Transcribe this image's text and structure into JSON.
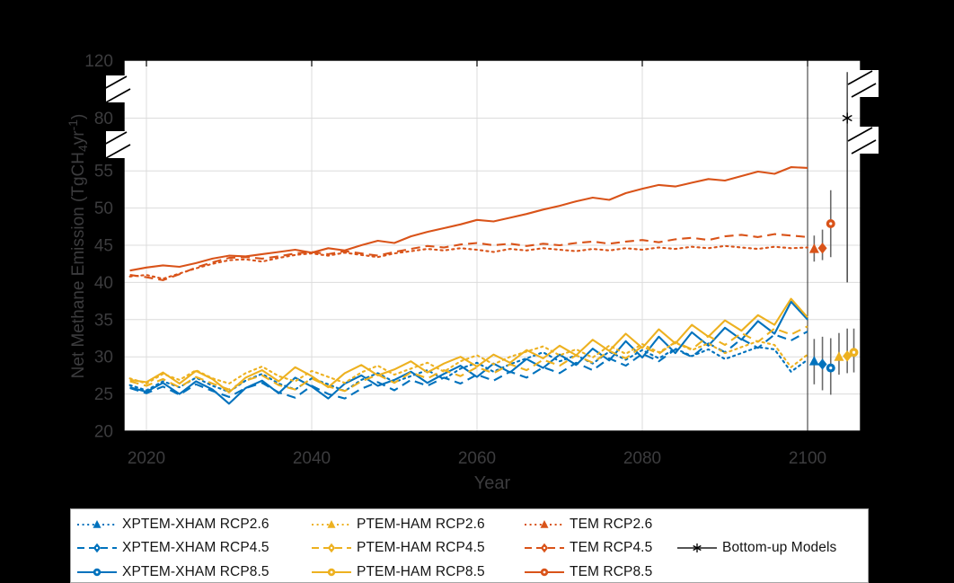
{
  "figure": {
    "background": "#000000",
    "plot_background": "#ffffff"
  },
  "colors": {
    "xptem_xham_blue": "#0072BD",
    "ptem_ham_yellow": "#EDB120",
    "tem_orange": "#D95319",
    "bottom_up_gray": "#333333",
    "error_bar_gray": "#6a6a6a",
    "grid": "#dcdcdc",
    "axis_line": "#000000",
    "axis_text": "#3c3c3e",
    "legend_text": "#141414"
  },
  "axis": {
    "xlabel": "Year",
    "ylabel_parts": [
      {
        "t": "Net Methane Emission (TgCH",
        "dy": 0,
        "size": 19
      },
      {
        "t": "4",
        "dy": 4,
        "size": 14
      },
      {
        "t": "yr",
        "dy": -4,
        "size": 19
      },
      {
        "t": "-1",
        "dy": -7,
        "size": 14
      },
      {
        "t": ")",
        "dy": 7,
        "size": 19
      }
    ],
    "x_tick_labels": [
      "2020",
      "2040",
      "2060",
      "2080",
      "2100"
    ],
    "y_tick_labels_lower": [
      "20",
      "25",
      "30",
      "35",
      "40",
      "45",
      "50",
      "55"
    ],
    "y_tick_labels_upper": [
      "80",
      "120"
    ]
  },
  "chart_data": {
    "type": "line",
    "title": "",
    "xlabel": "Year",
    "ylabel": "Net Methane Emission (TgCH4 yr-1)",
    "x_start": 2018,
    "x_step": 2,
    "x_axis_range_years": [
      2017.3,
      2106.4
    ],
    "y_axis_segments": [
      [
        20,
        57.5
      ],
      [
        57.5,
        80
      ],
      [
        80,
        120
      ]
    ],
    "y_axis_breaks_between": [
      [
        57.5,
        80
      ],
      [
        80,
        120
      ]
    ],
    "grid": true,
    "x_gridline_years": [
      2020,
      2040,
      2060,
      2080,
      2100
    ],
    "y_gridline_values": [
      25,
      30,
      35,
      40,
      45,
      50,
      55,
      80
    ],
    "x_tick_years": [
      2020,
      2040,
      2060,
      2080,
      2100
    ],
    "y_tick_values": [
      20,
      25,
      30,
      35,
      40,
      45,
      50,
      55,
      80,
      120
    ],
    "end_of_record_vline_year": 2100,
    "series": [
      {
        "name": "XPTEM-XHAM RCP2.6",
        "color": "#0072BD",
        "dash": "dotted",
        "marker": "triangle",
        "values": [
          26.2,
          25.5,
          26.7,
          25.9,
          27.2,
          26.1,
          25.3,
          26.8,
          27.7,
          26.4,
          25.6,
          27.1,
          26.3,
          25.4,
          26.9,
          27.8,
          26.6,
          27.4,
          28.2,
          27.0,
          28.4,
          29.2,
          28.0,
          29.0,
          29.8,
          30.6,
          29.4,
          30.2,
          29.1,
          30.7,
          29.6,
          30.9,
          29.8,
          31.1,
          30.1,
          31.0,
          29.7,
          30.5,
          31.3,
          31.0,
          28.0,
          29.6
        ]
      },
      {
        "name": "XPTEM-XHAM RCP4.5",
        "color": "#0072BD",
        "dash": "dashed",
        "marker": "diamond",
        "values": [
          25.8,
          25.1,
          26.0,
          24.9,
          26.3,
          25.4,
          24.6,
          25.8,
          26.5,
          25.2,
          24.5,
          26.1,
          25.0,
          24.4,
          25.7,
          26.6,
          25.5,
          26.9,
          26.1,
          27.2,
          26.4,
          27.6,
          26.8,
          28.0,
          27.2,
          28.6,
          27.8,
          29.2,
          28.2,
          29.8,
          28.8,
          30.4,
          29.4,
          31.0,
          30.0,
          31.8,
          30.6,
          32.4,
          31.2,
          33.0,
          32.2,
          33.4
        ]
      },
      {
        "name": "XPTEM-XHAM RCP8.5",
        "color": "#0072BD",
        "dash": "solid",
        "marker": "circle",
        "values": [
          25.9,
          25.3,
          26.5,
          25.0,
          26.7,
          25.6,
          23.7,
          25.8,
          26.8,
          25.1,
          27.2,
          26.0,
          24.4,
          26.4,
          27.5,
          26.1,
          26.9,
          28.0,
          26.5,
          27.7,
          28.8,
          27.3,
          29.1,
          27.9,
          29.7,
          28.5,
          30.3,
          28.9,
          31.1,
          29.5,
          32.1,
          29.9,
          32.7,
          30.5,
          33.3,
          31.5,
          33.9,
          32.3,
          34.8,
          33.1,
          37.4,
          35.0
        ]
      },
      {
        "name": "PTEM-HAM RCP2.6",
        "color": "#EDB120",
        "dash": "dotted",
        "marker": "triangle",
        "values": [
          27.1,
          26.4,
          27.7,
          26.9,
          28.2,
          27.1,
          26.4,
          27.8,
          28.7,
          27.4,
          26.7,
          28.1,
          27.3,
          26.5,
          27.9,
          28.8,
          27.6,
          28.4,
          29.2,
          28.0,
          29.4,
          30.2,
          29.0,
          30.0,
          30.7,
          31.4,
          30.2,
          31.0,
          29.9,
          31.5,
          30.4,
          31.7,
          30.6,
          31.9,
          30.9,
          31.8,
          30.5,
          31.3,
          32.1,
          31.6,
          28.6,
          30.3
        ]
      },
      {
        "name": "PTEM-HAM RCP4.5",
        "color": "#EDB120",
        "dash": "dashed",
        "marker": "diamond",
        "values": [
          26.7,
          26.1,
          27.0,
          25.9,
          27.3,
          26.4,
          25.6,
          26.8,
          27.5,
          26.2,
          25.6,
          27.1,
          26.0,
          25.4,
          26.7,
          27.6,
          26.5,
          27.9,
          27.1,
          28.2,
          27.4,
          28.6,
          27.8,
          29.0,
          28.2,
          29.6,
          28.8,
          30.2,
          29.2,
          30.8,
          29.8,
          31.4,
          30.4,
          32.0,
          31.0,
          32.8,
          31.6,
          33.2,
          32.0,
          33.8,
          33.0,
          34.1
        ]
      },
      {
        "name": "PTEM-HAM RCP8.5",
        "color": "#EDB120",
        "dash": "solid",
        "marker": "circle",
        "values": [
          26.9,
          26.6,
          27.9,
          26.4,
          28.1,
          27.0,
          25.2,
          27.2,
          28.2,
          26.7,
          28.6,
          27.4,
          25.9,
          27.8,
          28.9,
          27.5,
          28.3,
          29.4,
          27.9,
          29.1,
          30.0,
          28.7,
          30.3,
          29.2,
          30.9,
          29.8,
          31.5,
          30.2,
          32.3,
          30.8,
          33.1,
          31.2,
          33.7,
          31.8,
          34.3,
          32.7,
          34.9,
          33.5,
          35.6,
          34.3,
          37.8,
          35.3
        ]
      },
      {
        "name": "TEM RCP2.6",
        "color": "#D95319",
        "dash": "dotted",
        "marker": "triangle",
        "values": [
          40.8,
          41.0,
          40.5,
          41.2,
          41.9,
          42.5,
          43.0,
          43.1,
          42.8,
          43.3,
          43.7,
          43.9,
          43.6,
          44.0,
          43.7,
          43.4,
          43.9,
          44.2,
          44.5,
          44.3,
          44.6,
          44.4,
          44.1,
          44.5,
          44.3,
          44.6,
          44.4,
          44.2,
          44.5,
          44.3,
          44.6,
          44.4,
          44.7,
          44.5,
          44.8,
          44.6,
          44.9,
          44.7,
          44.5,
          44.8,
          44.6,
          44.7
        ]
      },
      {
        "name": "TEM RCP4.5",
        "color": "#D95319",
        "dash": "dashed",
        "marker": "diamond",
        "values": [
          41.0,
          40.7,
          40.3,
          41.1,
          42.0,
          42.7,
          43.3,
          43.4,
          43.2,
          43.5,
          43.9,
          44.1,
          43.8,
          44.2,
          43.9,
          43.6,
          44.1,
          44.5,
          44.9,
          44.7,
          45.1,
          45.3,
          45.0,
          45.2,
          44.9,
          45.2,
          45.0,
          45.3,
          45.5,
          45.2,
          45.5,
          45.7,
          45.4,
          45.8,
          46.0,
          45.7,
          46.2,
          46.4,
          46.1,
          46.5,
          46.3,
          46.1
        ]
      },
      {
        "name": "TEM RCP8.5",
        "color": "#D95319",
        "dash": "solid",
        "marker": "circle",
        "values": [
          41.6,
          42.0,
          42.3,
          42.1,
          42.6,
          43.2,
          43.6,
          43.5,
          43.8,
          44.1,
          44.4,
          44.0,
          44.6,
          44.3,
          45.0,
          45.6,
          45.3,
          46.2,
          46.8,
          47.3,
          47.8,
          48.4,
          48.2,
          48.7,
          49.2,
          49.8,
          50.3,
          50.9,
          51.4,
          51.1,
          52.0,
          52.6,
          53.1,
          52.9,
          53.4,
          53.9,
          53.7,
          54.3,
          54.9,
          54.6,
          55.5,
          55.4
        ]
      }
    ],
    "endpoint_estimates": [
      {
        "series": "XPTEM-XHAM RCP2.6",
        "color": "#0072BD",
        "marker": "triangle",
        "year": 2100.8,
        "value": 29.4,
        "err_low": 26.3,
        "err_high": 32.4
      },
      {
        "series": "XPTEM-XHAM RCP4.5",
        "color": "#0072BD",
        "marker": "diamond",
        "year": 2101.8,
        "value": 29.0,
        "err_low": 25.5,
        "err_high": 32.7
      },
      {
        "series": "XPTEM-XHAM RCP8.5",
        "color": "#0072BD",
        "marker": "circle",
        "year": 2102.8,
        "value": 28.5,
        "err_low": 24.9,
        "err_high": 32.5
      },
      {
        "series": "PTEM-HAM RCP2.6",
        "color": "#EDB120",
        "marker": "triangle",
        "year": 2103.8,
        "value": 30.0,
        "err_low": 27.6,
        "err_high": 33.2
      },
      {
        "series": "PTEM-HAM RCP4.5",
        "color": "#EDB120",
        "marker": "diamond",
        "year": 2104.8,
        "value": 30.1,
        "err_low": 27.8,
        "err_high": 33.8
      },
      {
        "series": "PTEM-HAM RCP8.5",
        "color": "#EDB120",
        "marker": "circle",
        "year": 2105.6,
        "value": 30.6,
        "err_low": 27.9,
        "err_high": 33.8
      },
      {
        "series": "TEM RCP2.6",
        "color": "#D95319",
        "marker": "triangle",
        "year": 2100.8,
        "value": 44.5,
        "err_low": 42.8,
        "err_high": 46.3
      },
      {
        "series": "TEM RCP4.5",
        "color": "#D95319",
        "marker": "diamond",
        "year": 2101.8,
        "value": 44.6,
        "err_low": 43.0,
        "err_high": 47.1
      },
      {
        "series": "TEM RCP8.5",
        "color": "#D95319",
        "marker": "circle",
        "year": 2102.8,
        "value": 47.9,
        "err_low": 43.4,
        "err_high": 52.4
      },
      {
        "series": "Bottom-up Models",
        "color": "#333333",
        "marker": "asterisk",
        "year": 2104.8,
        "value": 80.0,
        "err_low": 40.0,
        "err_high": 112.0
      }
    ]
  },
  "legend": {
    "background": "#ffffff",
    "border_color": "#a6a6a6",
    "columns": [
      {
        "x": 6
      },
      {
        "x": 267
      },
      {
        "x": 504
      },
      {
        "x": 674
      }
    ],
    "rows": [
      {
        "y": 17
      },
      {
        "y": 43
      },
      {
        "y": 70
      }
    ],
    "entries": [
      {
        "label": "XPTEM-XHAM RCP2.6",
        "color": "#0072BD",
        "dash": "dotted",
        "marker": "triangle",
        "col": 0,
        "row": 0
      },
      {
        "label": "XPTEM-XHAM RCP4.5",
        "color": "#0072BD",
        "dash": "dashed",
        "marker": "diamond",
        "col": 0,
        "row": 1
      },
      {
        "label": "XPTEM-XHAM RCP8.5",
        "color": "#0072BD",
        "dash": "solid",
        "marker": "circle",
        "col": 0,
        "row": 2
      },
      {
        "label": "PTEM-HAM RCP2.6",
        "color": "#EDB120",
        "dash": "dotted",
        "marker": "triangle",
        "col": 1,
        "row": 0
      },
      {
        "label": "PTEM-HAM RCP4.5",
        "color": "#EDB120",
        "dash": "dashed",
        "marker": "diamond",
        "col": 1,
        "row": 1
      },
      {
        "label": "PTEM-HAM RCP8.5",
        "color": "#EDB120",
        "dash": "solid",
        "marker": "circle",
        "col": 1,
        "row": 2
      },
      {
        "label": "TEM RCP2.6",
        "color": "#D95319",
        "dash": "dotted",
        "marker": "triangle",
        "col": 2,
        "row": 0
      },
      {
        "label": "TEM RCP4.5",
        "color": "#D95319",
        "dash": "dashed",
        "marker": "diamond",
        "col": 2,
        "row": 1
      },
      {
        "label": "TEM RCP8.5",
        "color": "#D95319",
        "dash": "solid",
        "marker": "circle",
        "col": 2,
        "row": 2
      },
      {
        "label": "Bottom-up Models",
        "color": "#4d4d4d",
        "dash": "solid",
        "marker": "asterisk",
        "col": 3,
        "row": 1
      }
    ]
  }
}
